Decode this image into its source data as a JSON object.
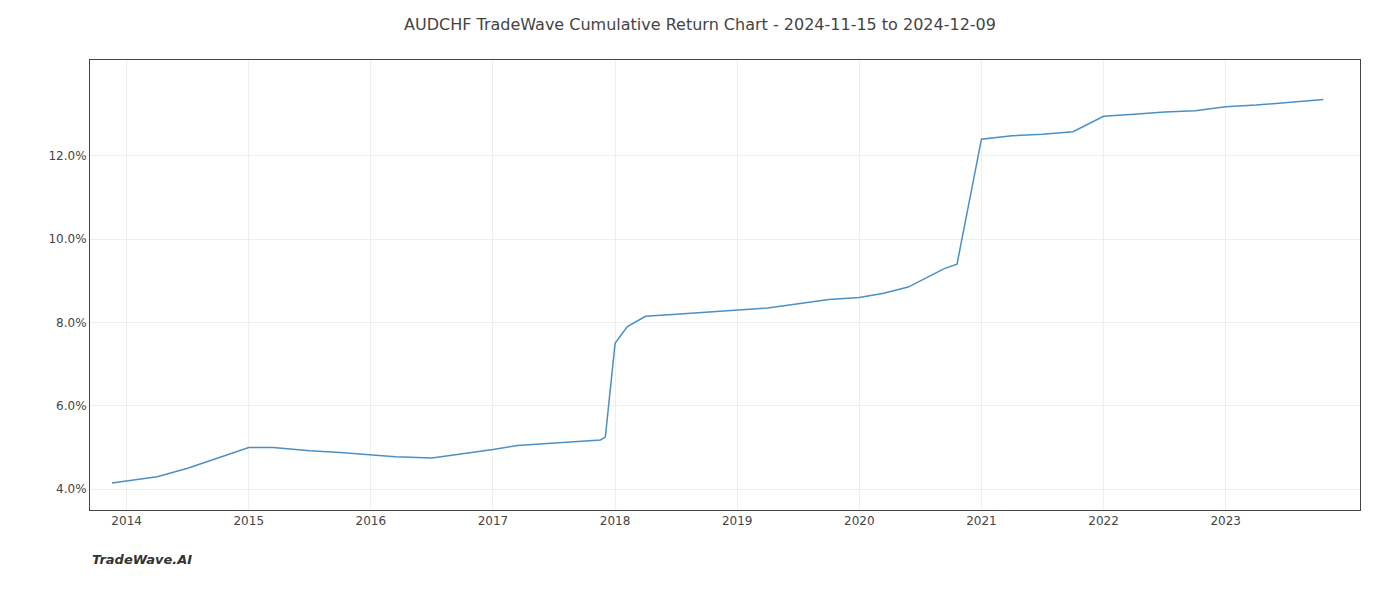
{
  "chart_data": {
    "type": "line",
    "title": "AUDCHF TradeWave Cumulative Return Chart - 2024-11-15 to 2024-12-09",
    "annotations": [
      "TradeWave.AI"
    ],
    "x": [
      2013.88,
      2014.0,
      2014.1,
      2014.25,
      2014.5,
      2014.75,
      2015.0,
      2015.2,
      2015.5,
      2015.75,
      2016.0,
      2016.2,
      2016.5,
      2016.75,
      2017.0,
      2017.2,
      2017.5,
      2017.75,
      2017.88,
      2017.92,
      2018.0,
      2018.1,
      2018.25,
      2018.5,
      2018.75,
      2019.0,
      2019.25,
      2019.5,
      2019.75,
      2020.0,
      2020.2,
      2020.4,
      2020.5,
      2020.6,
      2020.7,
      2020.8,
      2021.0,
      2021.25,
      2021.5,
      2021.75,
      2022.0,
      2022.25,
      2022.5,
      2022.75,
      2023.0,
      2023.25,
      2023.5,
      2023.8
    ],
    "values": [
      4.15,
      4.2,
      4.25,
      4.3,
      4.5,
      4.75,
      5.0,
      5.0,
      4.92,
      4.88,
      4.82,
      4.78,
      4.75,
      4.85,
      4.95,
      5.05,
      5.1,
      5.15,
      5.18,
      5.25,
      7.5,
      7.9,
      8.15,
      8.2,
      8.25,
      8.3,
      8.35,
      8.45,
      8.55,
      8.6,
      8.7,
      8.85,
      9.0,
      9.15,
      9.3,
      9.4,
      12.4,
      12.48,
      12.52,
      12.58,
      12.95,
      13.0,
      13.05,
      13.08,
      13.18,
      13.22,
      13.28,
      13.35
    ],
    "color": "#4a90c4",
    "xlim": [
      2013.7,
      2024.1
    ],
    "xticks": [
      2014,
      2015,
      2016,
      2017,
      2018,
      2019,
      2020,
      2021,
      2022,
      2023
    ],
    "ylim": [
      3.5,
      14.3
    ],
    "yticks": [
      {
        "value": 4.0,
        "label": "4.0%"
      },
      {
        "value": 6.0,
        "label": "6.0%"
      },
      {
        "value": 8.0,
        "label": "8.0%"
      },
      {
        "value": 10.0,
        "label": "10.0%"
      },
      {
        "value": 12.0,
        "label": "12.0%"
      }
    ],
    "grid": true
  }
}
